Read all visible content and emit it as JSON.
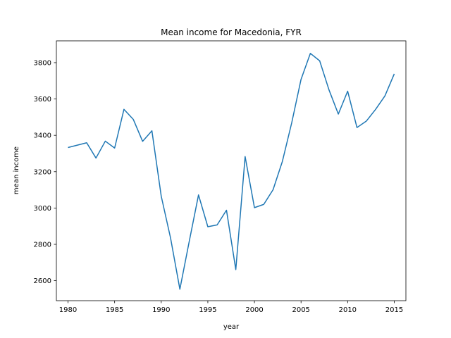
{
  "chart_data": {
    "type": "line",
    "title": "Mean income for Macedonia, FYR",
    "xlabel": "year",
    "ylabel": "mean income",
    "xlim": [
      1978.75,
      2016.25
    ],
    "ylim": [
      2490,
      3920
    ],
    "xticks": [
      1980,
      1985,
      1990,
      1995,
      2000,
      2005,
      2010,
      2015
    ],
    "yticks": [
      2600,
      2800,
      3000,
      3200,
      3400,
      3600,
      3800
    ],
    "grid": false,
    "legend": "none",
    "series": [
      {
        "color": "#1f77b4",
        "x": [
          1980,
          1981,
          1982,
          1983,
          1984,
          1985,
          1986,
          1987,
          1988,
          1989,
          1990,
          1991,
          1992,
          1993,
          1994,
          1995,
          1996,
          1997,
          1998,
          1999,
          2000,
          2001,
          2002,
          2003,
          2004,
          2005,
          2006,
          2007,
          2008,
          2009,
          2010,
          2011,
          2012,
          2013,
          2014,
          2015
        ],
        "y": [
          3333,
          3346,
          3359,
          3275,
          3368,
          3330,
          3543,
          3488,
          3367,
          3425,
          3065,
          2835,
          2553,
          2815,
          3072,
          2897,
          2907,
          2988,
          2661,
          3283,
          3002,
          3020,
          3101,
          3257,
          3469,
          3708,
          3851,
          3810,
          3650,
          3517,
          3643,
          3443,
          3478,
          3543,
          3617,
          3738
        ]
      }
    ]
  }
}
